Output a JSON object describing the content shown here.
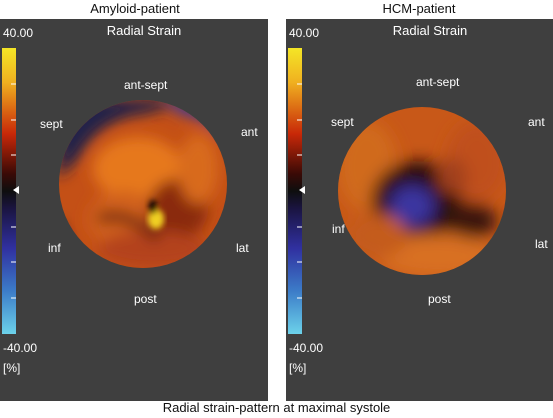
{
  "panels": [
    {
      "title": "Amyloid-patient",
      "subtitle": "Radial Strain",
      "scale": {
        "max": "40.00",
        "min": "-40.00",
        "unit": "[%]"
      },
      "segments": {
        "ant_sept": "ant-sept",
        "sept": "sept",
        "ant": "ant",
        "inf": "inf",
        "lat": "lat",
        "post": "post"
      }
    },
    {
      "title": "HCM-patient",
      "subtitle": "Radial Strain",
      "scale": {
        "max": "40.00",
        "min": "-40.00",
        "unit": "[%]"
      },
      "segments": {
        "ant_sept": "ant-sept",
        "sept": "sept",
        "ant": "ant",
        "inf": "inf",
        "lat": "lat",
        "post": "post"
      }
    }
  ],
  "caption": "Radial strain-pattern at maximal systole",
  "colors": {
    "panel_bg": "#3f3f3f",
    "colorbar_top": "#f0e020",
    "colorbar_mid_upper": "#c22a08",
    "colorbar_zero": "#111111",
    "colorbar_mid_lower": "#3a3aa8",
    "colorbar_bottom": "#66cce6",
    "strain_positive": "#d2641c",
    "strain_negative": "#3a3a9a"
  }
}
